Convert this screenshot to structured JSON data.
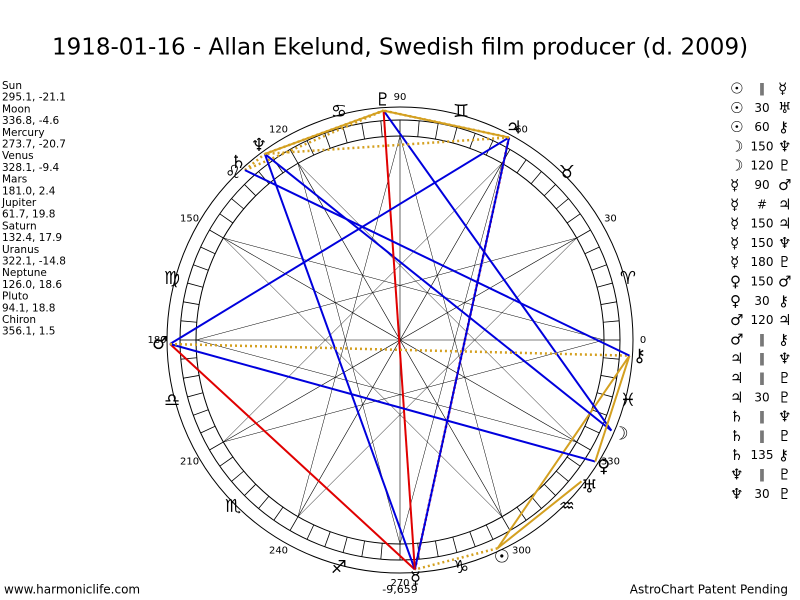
{
  "title": "1918-01-16 - Allan Ekelund, Swedish film producer (d. 2009)",
  "planets": [
    {
      "name": "Sun",
      "glyph": "☉",
      "coords": "295.1, -21.1"
    },
    {
      "name": "Moon",
      "glyph": "☽",
      "coords": "336.8, -4.6"
    },
    {
      "name": "Mercury",
      "glyph": "☿",
      "coords": "273.7, -20.7"
    },
    {
      "name": "Venus",
      "glyph": "♀",
      "coords": "328.1, -9.4"
    },
    {
      "name": "Mars",
      "glyph": "♂",
      "coords": "181.0, 2.4"
    },
    {
      "name": "Jupiter",
      "glyph": "♃",
      "coords": "61.7, 19.8"
    },
    {
      "name": "Saturn",
      "glyph": "♄",
      "coords": "132.4, 17.9"
    },
    {
      "name": "Uranus",
      "glyph": "♅",
      "coords": "322.1, -14.8"
    },
    {
      "name": "Neptune",
      "glyph": "♆",
      "coords": "126.0, 18.6"
    },
    {
      "name": "Pluto",
      "glyph": "♇",
      "coords": "94.1, 18.8"
    },
    {
      "name": "Chiron",
      "glyph": "⚷",
      "coords": "356.1, 1.5"
    }
  ],
  "signs": [
    "♈",
    "♉",
    "♊",
    "♋",
    "♌",
    "♍",
    "♎",
    "♏",
    "♐",
    "♑",
    "♒",
    "♓"
  ],
  "degree_labels": [
    0,
    30,
    60,
    90,
    120,
    150,
    180,
    210,
    240,
    270,
    300,
    330
  ],
  "bottom_label": "-9,659",
  "aspects": [
    {
      "a": "☉",
      "aspect": "‖",
      "b": "☿"
    },
    {
      "a": "☉",
      "aspect": "30",
      "b": "♅"
    },
    {
      "a": "☉",
      "aspect": "60",
      "b": "⚷"
    },
    {
      "a": "☽",
      "aspect": "150",
      "b": "♆"
    },
    {
      "a": "☽",
      "aspect": "120",
      "b": "♇"
    },
    {
      "a": "☿",
      "aspect": "90",
      "b": "♂"
    },
    {
      "a": "☿",
      "aspect": "#",
      "b": "♃"
    },
    {
      "a": "☿",
      "aspect": "150",
      "b": "♃"
    },
    {
      "a": "☿",
      "aspect": "150",
      "b": "♆"
    },
    {
      "a": "☿",
      "aspect": "180",
      "b": "♇"
    },
    {
      "a": "♀",
      "aspect": "150",
      "b": "♂"
    },
    {
      "a": "♀",
      "aspect": "30",
      "b": "⚷"
    },
    {
      "a": "♂",
      "aspect": "120",
      "b": "♃"
    },
    {
      "a": "♂",
      "aspect": "‖",
      "b": "⚷"
    },
    {
      "a": "♃",
      "aspect": "‖",
      "b": "♆"
    },
    {
      "a": "♃",
      "aspect": "‖",
      "b": "♇"
    },
    {
      "a": "♃",
      "aspect": "30",
      "b": "♇"
    },
    {
      "a": "♄",
      "aspect": "‖",
      "b": "♆"
    },
    {
      "a": "♄",
      "aspect": "‖",
      "b": "♇"
    },
    {
      "a": "♄",
      "aspect": "135",
      "b": "⚷"
    },
    {
      "a": "♆",
      "aspect": "‖",
      "b": "♇"
    },
    {
      "a": "♆",
      "aspect": "30",
      "b": "♇"
    }
  ],
  "aspect_colors": {
    "180": "#e00000",
    "90": "#e00000",
    "150": "#0000dd",
    "120": "#0000dd",
    "135": "#0000dd",
    "60": "#d4a020",
    "30": "#d4a020",
    "‖": "#d4a020",
    "#": "#e00000"
  },
  "footer_left": "www.harmoniclife.com",
  "footer_right": "AstroChart Patent Pending"
}
